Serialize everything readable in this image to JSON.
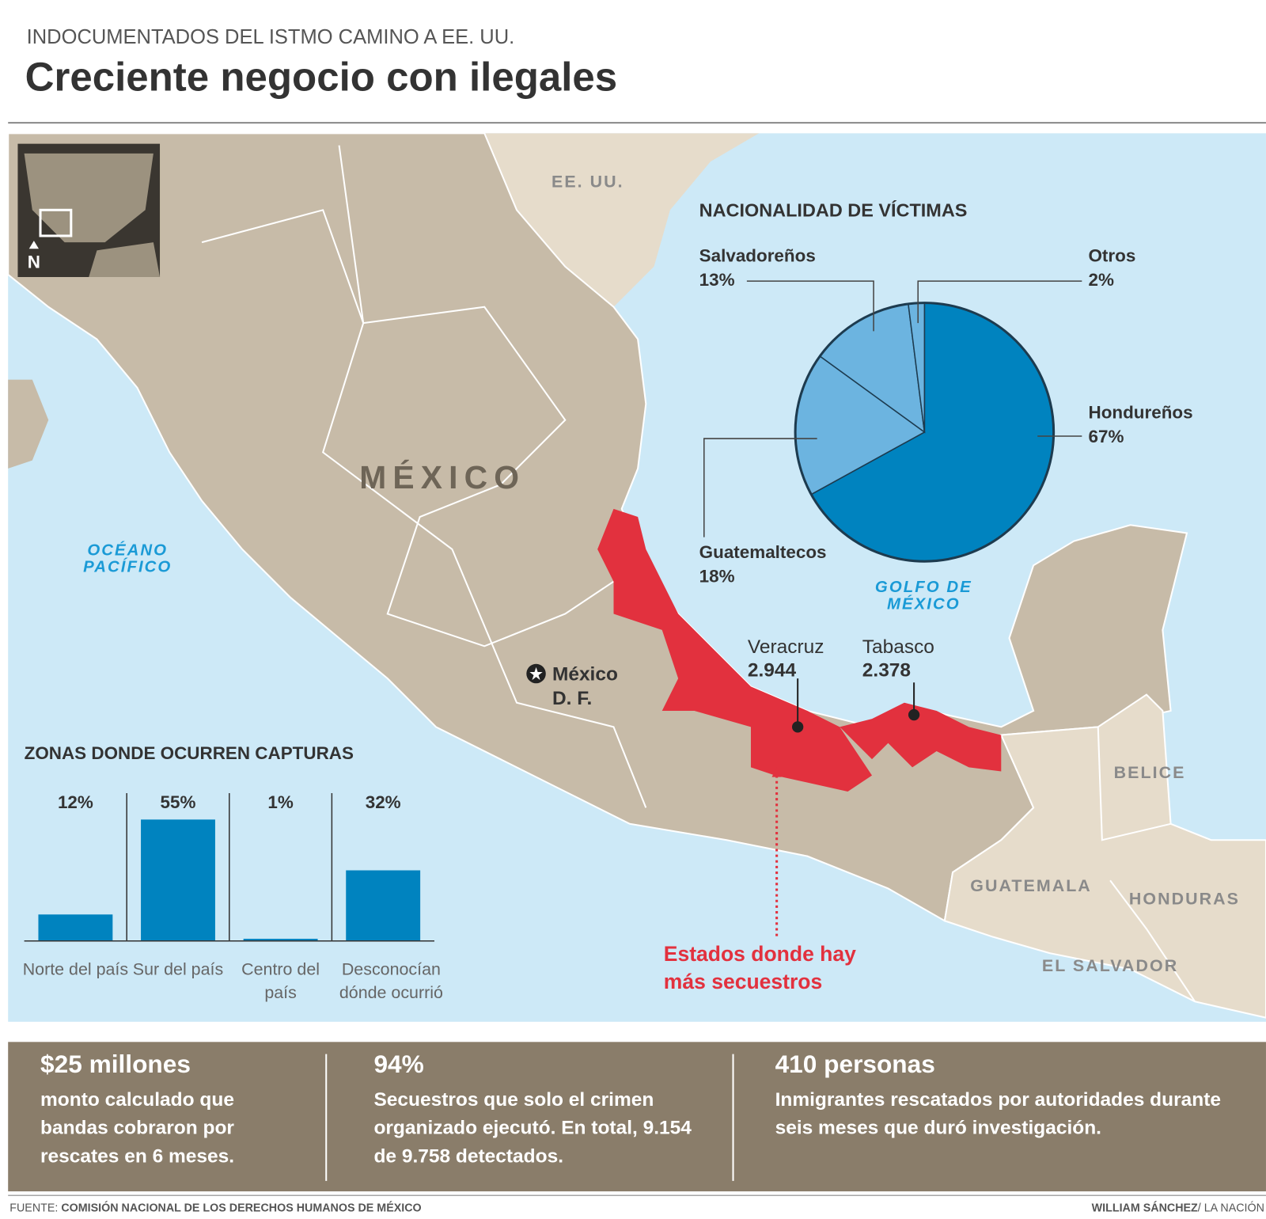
{
  "header": {
    "kicker": "INDOCUMENTADOS DEL ISTMO CAMINO A EE. UU.",
    "title": "Creciente negocio con ilegales"
  },
  "map": {
    "inset_north": "N",
    "us": "EE. UU.",
    "mexico": "MÉXICO",
    "pacific": [
      "OCÉANO",
      "PACÍFICO"
    ],
    "gulf": [
      "GOLFO DE",
      "MÉXICO"
    ],
    "capital": [
      "México",
      "D. F."
    ],
    "states": [
      {
        "name": "Veracruz",
        "value": "2.944"
      },
      {
        "name": "Tabasco",
        "value": "2.378"
      }
    ],
    "highlight_note": [
      "Estados donde hay",
      "más secuestros"
    ],
    "countries": [
      "BELICE",
      "GUATEMALA",
      "HONDURAS",
      "EL SALVADOR"
    ]
  },
  "chart_data": [
    {
      "type": "pie",
      "title": "NACIONALIDAD DE VÍCTIMAS",
      "categories": [
        "Hondureños",
        "Guatemaltecos",
        "Salvadoreños",
        "Otros"
      ],
      "values": [
        67,
        18,
        13,
        2
      ],
      "value_labels": [
        "67%",
        "18%",
        "13%",
        "2%"
      ],
      "colors": [
        "#0083bf",
        "#6cb4e0",
        "#6cb4e0",
        "#6cb4e0"
      ]
    },
    {
      "type": "bar",
      "title": "ZONAS DONDE OCURREN CAPTURAS",
      "categories": [
        "Norte del país",
        "Sur del país",
        "Centro del país",
        "Desconocían dónde ocurrió"
      ],
      "values": [
        12,
        55,
        1,
        32
      ],
      "value_labels": [
        "12%",
        "55%",
        "1%",
        "32%"
      ],
      "color": "#0083bf",
      "ylim": [
        0,
        60
      ]
    }
  ],
  "stats": [
    {
      "headline": "$25 millones",
      "text": "monto calculado que bandas cobraron por rescates en 6 meses."
    },
    {
      "headline": "94%",
      "text": "Secuestros que solo el crimen organizado ejecutó.  En total, 9.154 de 9.758 detectados."
    },
    {
      "headline": "410 personas",
      "text": "Inmigrantes rescatados por autoridades durante seis meses que duró investigación."
    }
  ],
  "footer": {
    "source_label": "FUENTE:",
    "source": "COMISIÓN NACIONAL DE LOS DERECHOS HUMANOS DE MÉXICO",
    "author": "WILLIAM SÁNCHEZ",
    "outlet": "/ LA NACIÓN"
  }
}
